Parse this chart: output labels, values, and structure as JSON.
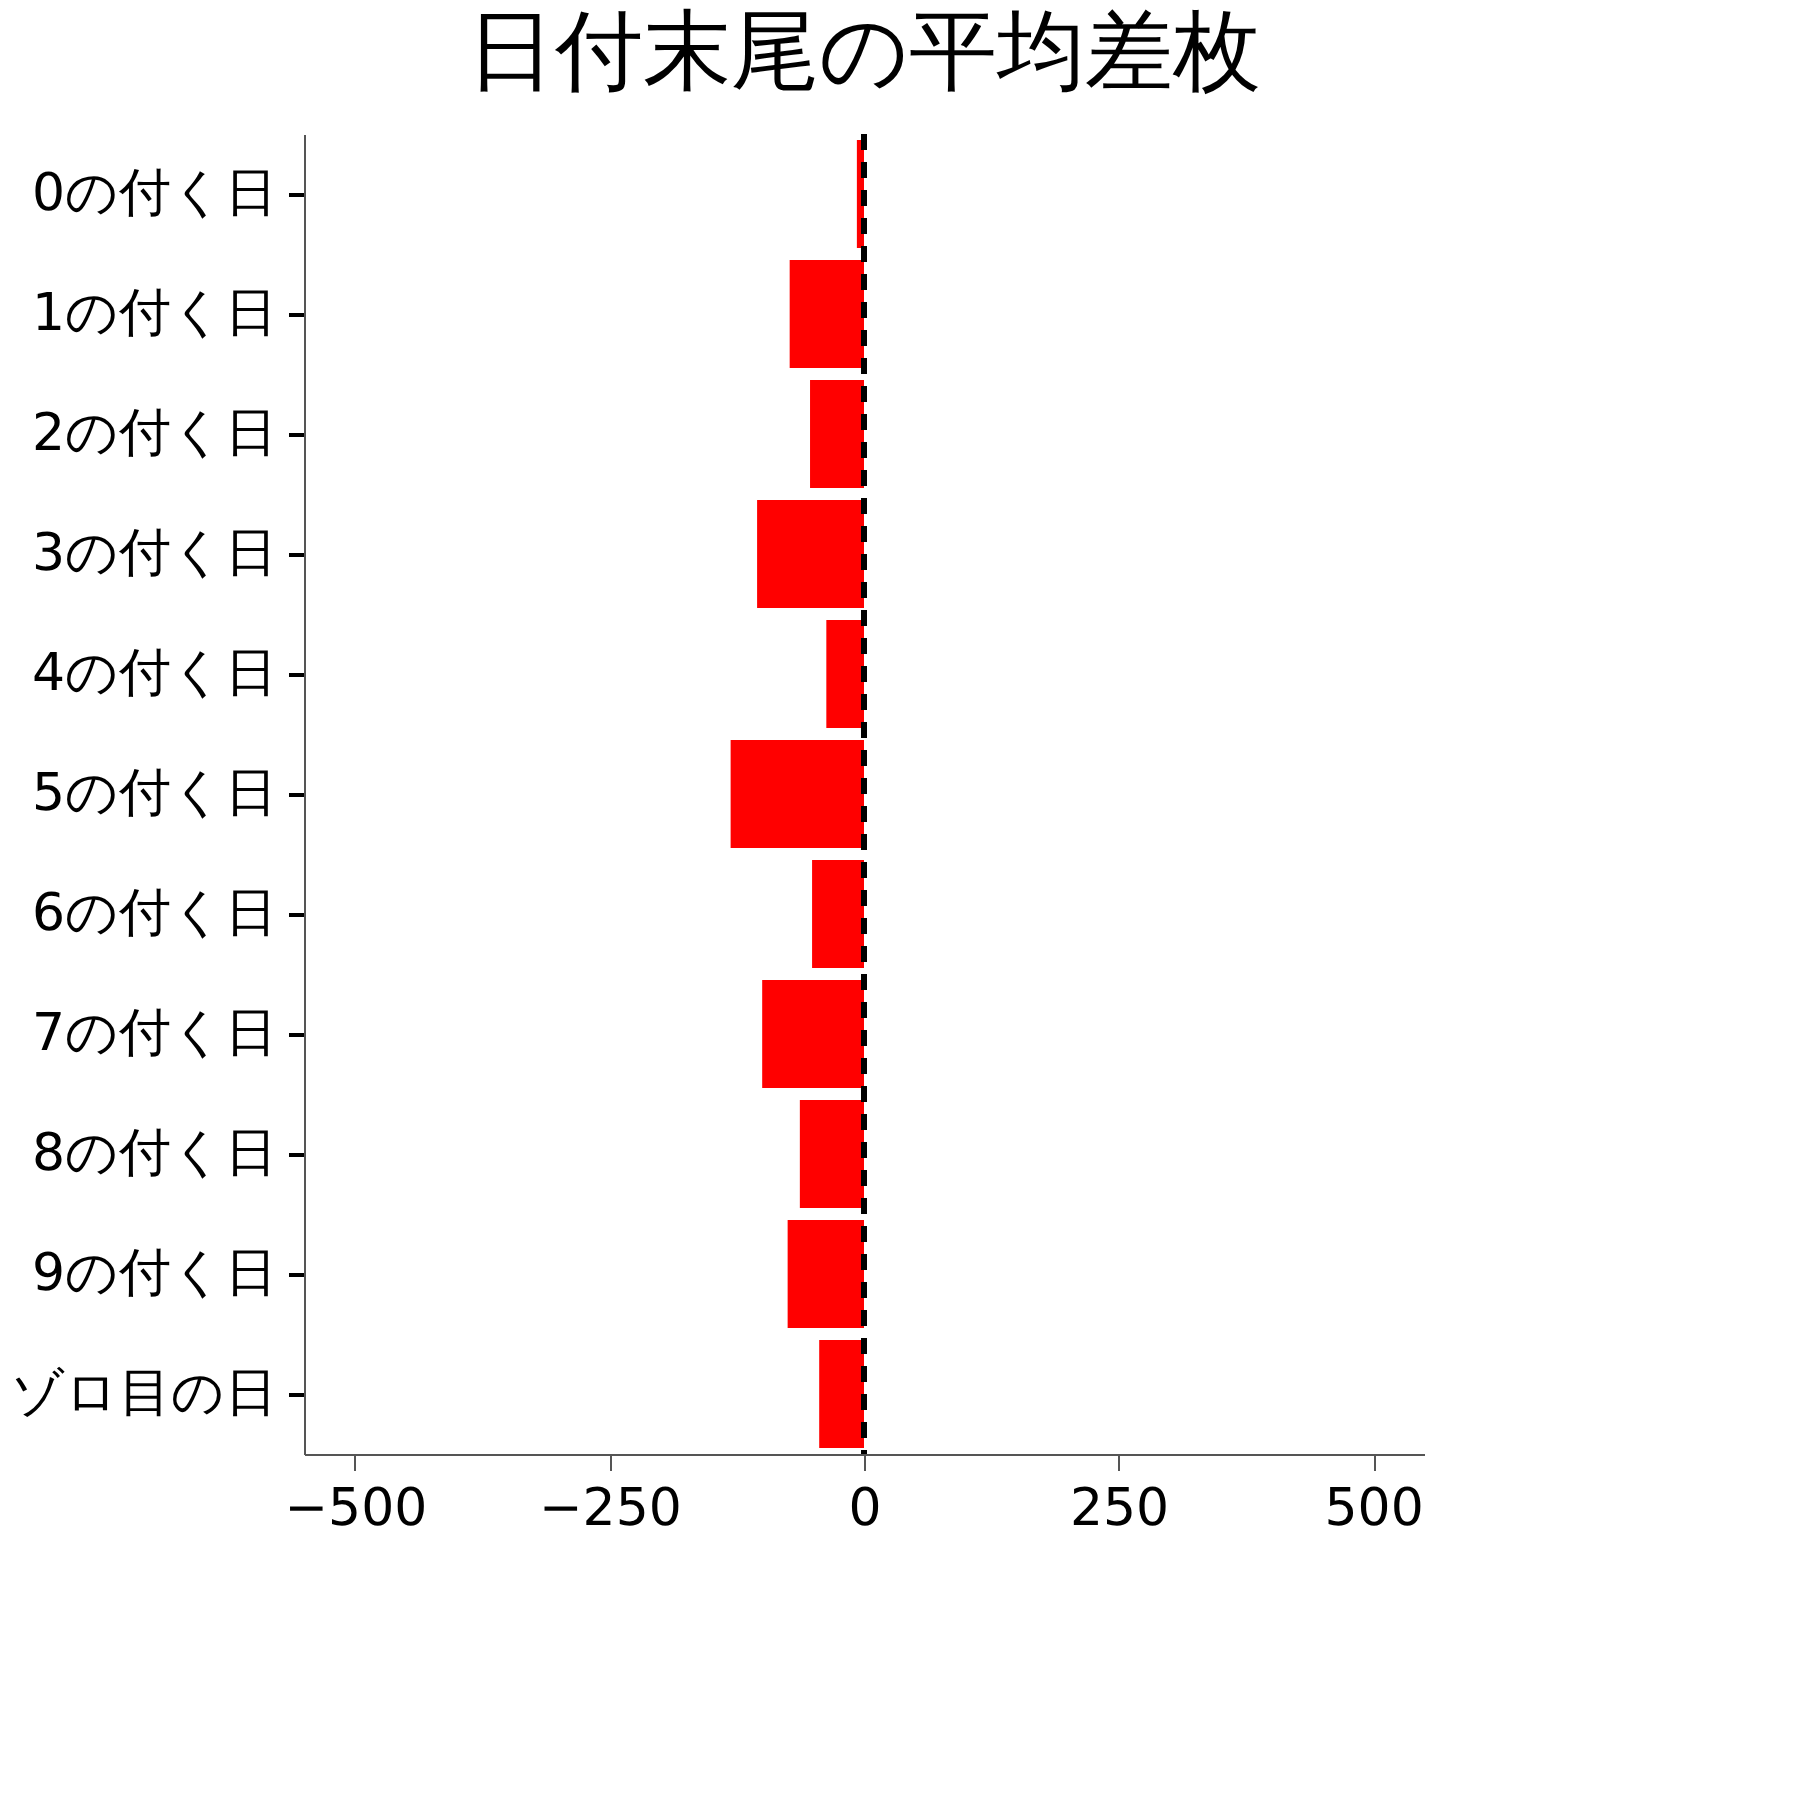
{
  "chart_data": {
    "type": "bar",
    "orientation": "horizontal",
    "title": "日付末尾の平均差枚",
    "categories": [
      "0の付く日",
      "1の付く日",
      "2の付く日",
      "3の付く日",
      "4の付く日",
      "5の付く日",
      "6の付く日",
      "7の付く日",
      "8の付く日",
      "9の付く日",
      "ゾロ目の日"
    ],
    "values": [
      -7,
      -73,
      -53,
      -105,
      -37,
      -131,
      -51,
      -100,
      -63,
      -75,
      -44
    ],
    "color": "#ff0000",
    "xlim": [
      -550,
      550
    ],
    "xticks": [
      -500,
      -250,
      0,
      250,
      500
    ],
    "ref_lines": [
      {
        "axis": "x",
        "value": 0,
        "color": "#000000",
        "line_style": "dashed"
      }
    ],
    "grid": false
  }
}
